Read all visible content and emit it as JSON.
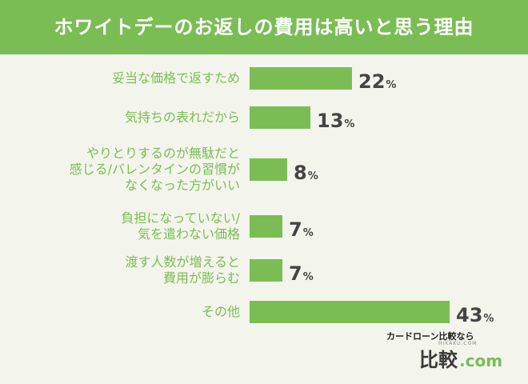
{
  "header": {
    "title": "ホワイトデーのお返しの費用は高いと思う理由"
  },
  "chart_data": {
    "type": "bar",
    "orientation": "horizontal",
    "categories": [
      "妥当な価格で返すため",
      "気持ちの表れだから",
      "やりとりするのが無駄だと\n感じる/バレンタインの習慣が\nなくなった方がいい",
      "負担になっていない/\n気を遣わない価格",
      "渡す人数が増えると\n費用が膨らむ",
      "その他"
    ],
    "values": [
      22,
      13,
      8,
      7,
      7,
      43
    ],
    "unit": "%",
    "xlim": [
      0,
      43
    ],
    "bar_color": "#7bbd55",
    "label_color": "#7bbd55",
    "value_color": "#444444"
  },
  "brand": {
    "subtitle": "カードローン比較なら",
    "tiny": "HIKAKU.COM",
    "logo_main": "比較",
    "logo_com": ".com"
  }
}
